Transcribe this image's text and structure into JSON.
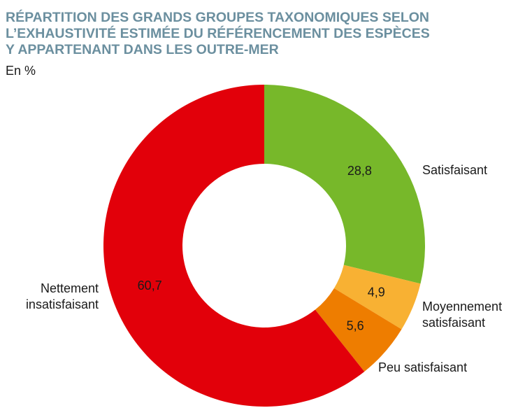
{
  "chart_data": {
    "type": "pie",
    "title_lines": [
      "RÉPARTITION DES GRANDS GROUPES TAXONOMIQUES SELON",
      "L’EXHAUSTIVITÉ ESTIMÉE DU RÉFÉRENCEMENT DES ESPÈCES",
      "Y APPARTENANT DANS LES OUTRE-MER"
    ],
    "unit_label": "En %",
    "slices": [
      {
        "label_lines": [
          "Satisfaisant"
        ],
        "value": 28.8,
        "value_text": "28,8",
        "color": "#77b82a"
      },
      {
        "label_lines": [
          "Moyennement",
          "satisfaisant"
        ],
        "value": 4.9,
        "value_text": "4,9",
        "color": "#f8b133"
      },
      {
        "label_lines": [
          "Peu satisfaisant"
        ],
        "value": 5.6,
        "value_text": "5,6",
        "color": "#ee7d00"
      },
      {
        "label_lines": [
          "Nettement",
          "insatisfaisant"
        ],
        "value": 60.7,
        "value_text": "60,7",
        "color": "#e2000a"
      }
    ]
  }
}
